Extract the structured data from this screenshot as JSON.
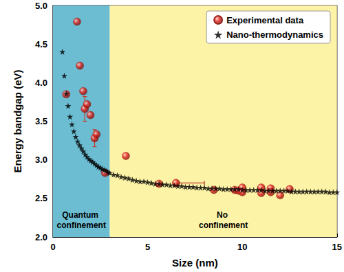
{
  "chart_data": {
    "type": "scatter",
    "x_label": "Size (nm)",
    "y_label": "Energy bandgap (eV)",
    "xlim": [
      0,
      15
    ],
    "xticks": [
      0,
      5,
      10,
      15
    ],
    "ylim": [
      2,
      5
    ],
    "yticks": [
      {
        "value": 2,
        "label": "2.0"
      },
      {
        "value": 2.5,
        "label": "2.5"
      },
      {
        "value": 3,
        "label": "3.0"
      },
      {
        "value": 3.5,
        "label": "3.5"
      },
      {
        "value": 4,
        "label": "4.0"
      },
      {
        "value": 4.5,
        "label": "4.5"
      },
      {
        "value": 5,
        "label": "5.0"
      }
    ],
    "grid": false,
    "legend": "upper right",
    "regions": [
      {
        "label": "Quantum confinement",
        "x": [
          0,
          3
        ],
        "color": "#6cbdd2"
      },
      {
        "label": "No confinement",
        "x": [
          3,
          15
        ],
        "color": "#fdf3a7"
      }
    ],
    "series": [
      {
        "name": "Experimental data",
        "color": "#e8231c",
        "marker": "sphere",
        "x": [
          0.7,
          1.27,
          1.42,
          1.6,
          1.68,
          1.8,
          1.98,
          2.2,
          2.3,
          2.75,
          3.85,
          5.6,
          6.5,
          8.5,
          9.6,
          9.8,
          10.0,
          10.0,
          11.0,
          11.0,
          11.5,
          11.5,
          12.0,
          12.5
        ],
        "values": [
          3.85,
          4.79,
          4.22,
          3.89,
          3.66,
          3.72,
          3.58,
          3.28,
          3.33,
          2.83,
          3.05,
          2.69,
          2.7,
          2.61,
          2.61,
          2.6,
          2.64,
          2.58,
          2.64,
          2.57,
          2.63,
          2.58,
          2.54,
          2.62
        ],
        "x_err": [
          null,
          null,
          null,
          null,
          null,
          null,
          null,
          null,
          null,
          null,
          null,
          null,
          [
            0,
            1.5
          ],
          null,
          null,
          null,
          null,
          null,
          null,
          null,
          null,
          null,
          null,
          null
        ],
        "y_err": [
          null,
          null,
          null,
          null,
          [
            0.16,
            0.16
          ],
          null,
          null,
          [
            0.11,
            0.11
          ],
          null,
          null,
          null,
          null,
          null,
          null,
          null,
          null,
          null,
          null,
          null,
          null,
          null,
          null,
          null,
          null
        ]
      },
      {
        "name": "Nano-thermodynamics",
        "color": "#000000",
        "marker": "star",
        "x": [
          0.5,
          0.6,
          0.7,
          0.8,
          0.9,
          1.0,
          1.1,
          1.2,
          1.3,
          1.4,
          1.5,
          1.6,
          1.7,
          1.8,
          1.9,
          2.0,
          2.1,
          2.2,
          2.3,
          2.4,
          2.5,
          2.6,
          2.7,
          2.8,
          2.9,
          3.0,
          3.2,
          3.4,
          3.6,
          3.8,
          4.0,
          4.2,
          4.4,
          4.6,
          4.8,
          5.0,
          5.2,
          5.4,
          5.6,
          5.8,
          6.0,
          6.2,
          6.4,
          6.6,
          6.8,
          7.0,
          7.2,
          7.4,
          7.6,
          7.8,
          8.0,
          8.2,
          8.4,
          8.6,
          8.8,
          9.0,
          9.2,
          9.4,
          9.6,
          9.8,
          10.0,
          10.2,
          10.4,
          10.6,
          10.8,
          11.0,
          11.2,
          11.4,
          11.6,
          11.8,
          12.0,
          12.2,
          12.4,
          12.6,
          12.8,
          13.0,
          13.2,
          13.4,
          13.6,
          13.8,
          14.0,
          14.2,
          14.4,
          14.6,
          14.8,
          15.0
        ],
        "values": [
          4.4,
          4.09,
          3.86,
          3.7,
          3.56,
          3.46,
          3.37,
          3.3,
          3.24,
          3.19,
          3.15,
          3.11,
          3.07,
          3.04,
          3.01,
          2.99,
          2.97,
          2.95,
          2.93,
          2.91,
          2.9,
          2.88,
          2.87,
          2.86,
          2.84,
          2.83,
          2.81,
          2.8,
          2.78,
          2.77,
          2.76,
          2.74,
          2.73,
          2.72,
          2.72,
          2.71,
          2.7,
          2.69,
          2.69,
          2.68,
          2.68,
          2.67,
          2.67,
          2.66,
          2.66,
          2.65,
          2.65,
          2.65,
          2.64,
          2.64,
          2.64,
          2.63,
          2.63,
          2.63,
          2.63,
          2.62,
          2.62,
          2.62,
          2.62,
          2.62,
          2.61,
          2.61,
          2.61,
          2.61,
          2.61,
          2.61,
          2.6,
          2.6,
          2.6,
          2.6,
          2.6,
          2.6,
          2.6,
          2.59,
          2.59,
          2.59,
          2.59,
          2.59,
          2.59,
          2.59,
          2.59,
          2.59,
          2.59,
          2.58,
          2.58,
          2.58
        ]
      }
    ]
  }
}
